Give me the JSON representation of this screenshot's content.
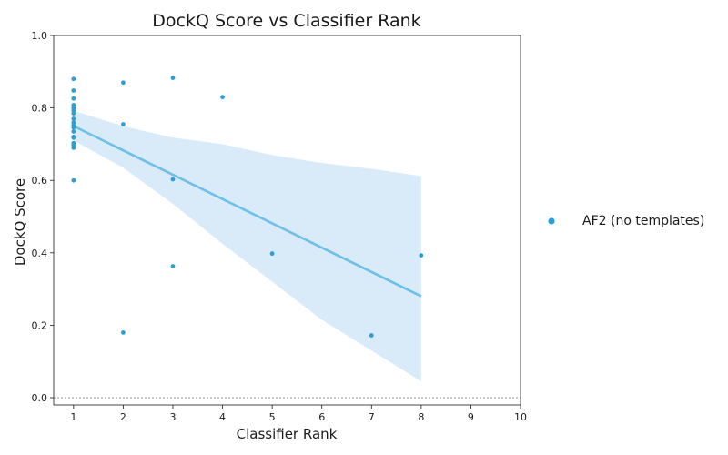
{
  "chart_data": {
    "type": "scatter",
    "title": "DockQ Score vs Classifier Rank",
    "xlabel": "Classifier Rank",
    "ylabel": "DockQ Score",
    "xlim": [
      0.6,
      10
    ],
    "ylim": [
      -0.02,
      1.0
    ],
    "x_ticks": [
      1,
      2,
      3,
      4,
      5,
      6,
      7,
      8,
      9,
      10
    ],
    "y_ticks": [
      0.0,
      0.2,
      0.4,
      0.6,
      0.8,
      1.0
    ],
    "x_tick_labels": [
      "1",
      "2",
      "3",
      "4",
      "5",
      "6",
      "7",
      "8",
      "9",
      "10"
    ],
    "y_tick_labels": [
      "0.0",
      "0.2",
      "0.4",
      "0.6",
      "0.8",
      "1.0"
    ],
    "grid": false,
    "reference_line": {
      "y": 0.0,
      "style": "dotted"
    },
    "legend_position": "outside-right",
    "series": [
      {
        "name": "AF2 (no templates)",
        "color": "#2b9fd6",
        "points": [
          {
            "x": 1,
            "y": 0.88
          },
          {
            "x": 1,
            "y": 0.848
          },
          {
            "x": 1,
            "y": 0.826
          },
          {
            "x": 1,
            "y": 0.808
          },
          {
            "x": 1,
            "y": 0.8
          },
          {
            "x": 1,
            "y": 0.793
          },
          {
            "x": 1,
            "y": 0.785
          },
          {
            "x": 1,
            "y": 0.77
          },
          {
            "x": 1,
            "y": 0.76
          },
          {
            "x": 1,
            "y": 0.752
          },
          {
            "x": 1,
            "y": 0.746
          },
          {
            "x": 1,
            "y": 0.735
          },
          {
            "x": 1,
            "y": 0.72
          },
          {
            "x": 1,
            "y": 0.718
          },
          {
            "x": 1,
            "y": 0.703
          },
          {
            "x": 1,
            "y": 0.697
          },
          {
            "x": 1,
            "y": 0.69
          },
          {
            "x": 1,
            "y": 0.6
          },
          {
            "x": 2,
            "y": 0.87
          },
          {
            "x": 2,
            "y": 0.755
          },
          {
            "x": 2,
            "y": 0.18
          },
          {
            "x": 3,
            "y": 0.883
          },
          {
            "x": 3,
            "y": 0.603
          },
          {
            "x": 3,
            "y": 0.363
          },
          {
            "x": 4,
            "y": 0.83
          },
          {
            "x": 5,
            "y": 0.398
          },
          {
            "x": 7,
            "y": 0.172
          },
          {
            "x": 8,
            "y": 0.393
          }
        ]
      }
    ],
    "regression": {
      "color": "#6ec0e6",
      "band_color": "#cfe6f7",
      "line": [
        {
          "x": 1,
          "y": 0.75
        },
        {
          "x": 8,
          "y": 0.28
        }
      ],
      "ci_upper": [
        {
          "x": 1,
          "y": 0.792
        },
        {
          "x": 2,
          "y": 0.75
        },
        {
          "x": 3,
          "y": 0.718
        },
        {
          "x": 4,
          "y": 0.7
        },
        {
          "x": 5,
          "y": 0.67
        },
        {
          "x": 6,
          "y": 0.648
        },
        {
          "x": 7,
          "y": 0.632
        },
        {
          "x": 8,
          "y": 0.612
        }
      ],
      "ci_lower": [
        {
          "x": 1,
          "y": 0.71
        },
        {
          "x": 2,
          "y": 0.635
        },
        {
          "x": 3,
          "y": 0.535
        },
        {
          "x": 4,
          "y": 0.425
        },
        {
          "x": 5,
          "y": 0.32
        },
        {
          "x": 6,
          "y": 0.215
        },
        {
          "x": 7,
          "y": 0.13
        },
        {
          "x": 8,
          "y": 0.045
        }
      ]
    }
  }
}
